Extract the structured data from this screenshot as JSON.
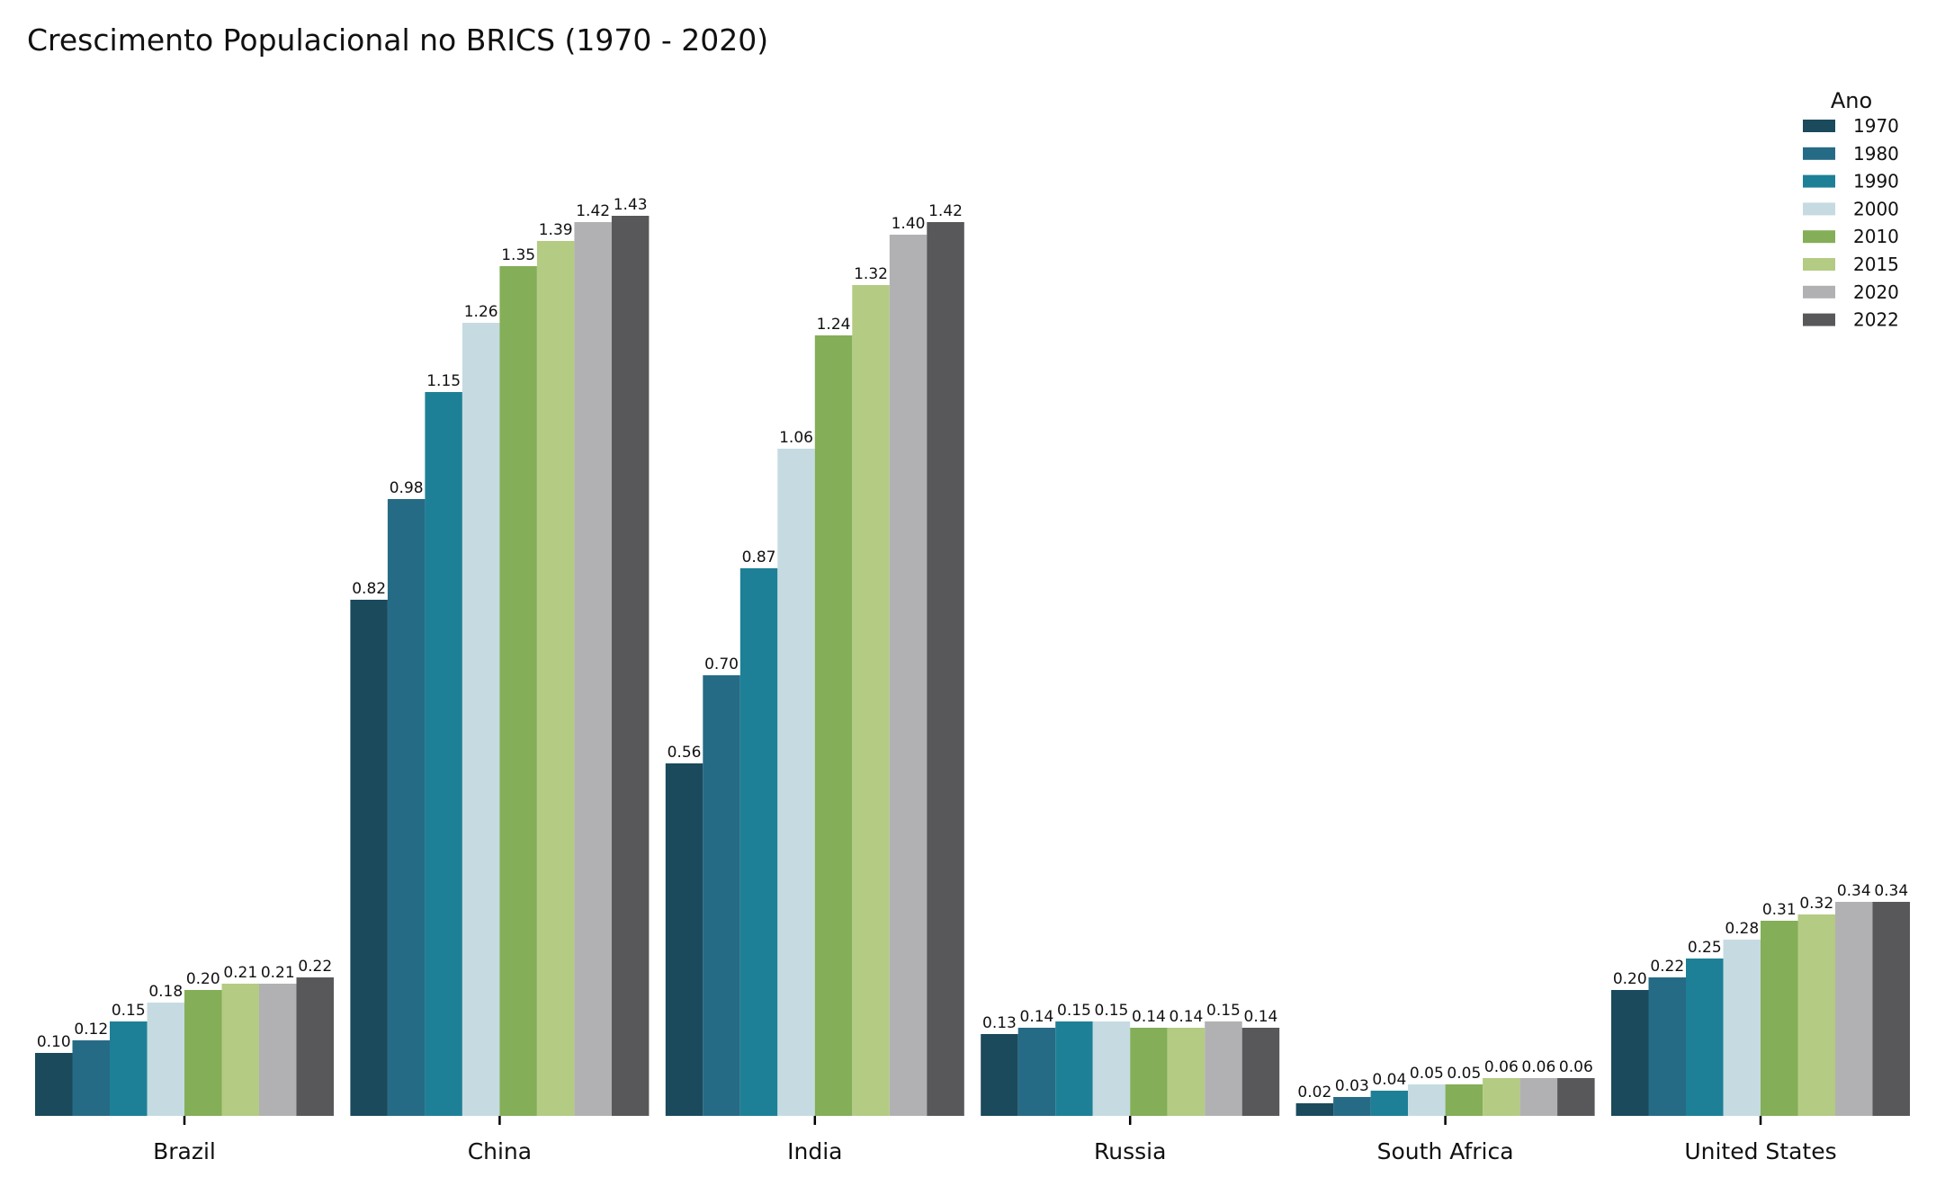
{
  "chart_data": {
    "type": "bar",
    "title": "Crescimento Populacional no BRICS (1970 - 2020)",
    "xlabel": "",
    "ylabel": "",
    "ylim": [
      0,
      1.5
    ],
    "grid": false,
    "legend": {
      "title": "Ano",
      "placement": "top-right"
    },
    "categories": [
      "Brazil",
      "China",
      "India",
      "Russia",
      "South Africa",
      "United States"
    ],
    "series": [
      {
        "name": "1970",
        "color": "#1a4a5c",
        "values": [
          0.1,
          0.82,
          0.56,
          0.13,
          0.02,
          0.2
        ]
      },
      {
        "name": "1980",
        "color": "#266b85",
        "values": [
          0.12,
          0.98,
          0.7,
          0.14,
          0.03,
          0.22
        ]
      },
      {
        "name": "1990",
        "color": "#1e8096",
        "values": [
          0.15,
          1.15,
          0.87,
          0.15,
          0.04,
          0.25
        ]
      },
      {
        "name": "2000",
        "color": "#c5dbe1",
        "values": [
          0.18,
          1.26,
          1.06,
          0.15,
          0.05,
          0.28
        ]
      },
      {
        "name": "2010",
        "color": "#84ae57",
        "values": [
          0.2,
          1.35,
          1.24,
          0.14,
          0.05,
          0.31
        ]
      },
      {
        "name": "2015",
        "color": "#b4cb83",
        "values": [
          0.21,
          1.39,
          1.32,
          0.14,
          0.06,
          0.32
        ]
      },
      {
        "name": "2020",
        "color": "#b1b1b3",
        "values": [
          0.21,
          1.42,
          1.4,
          0.15,
          0.06,
          0.34
        ]
      },
      {
        "name": "2022",
        "color": "#58585a",
        "values": [
          0.22,
          1.43,
          1.42,
          0.14,
          0.06,
          0.34
        ]
      }
    ]
  }
}
